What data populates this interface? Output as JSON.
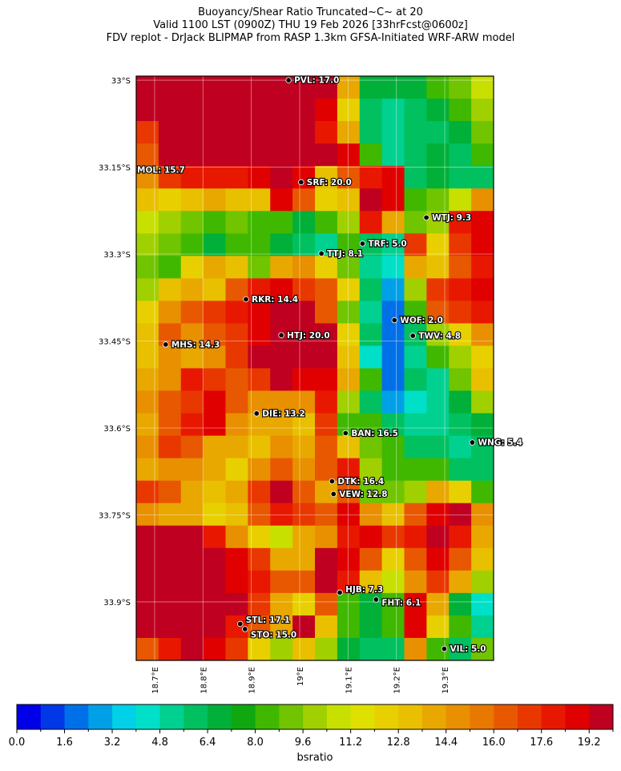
{
  "title": {
    "line1": "Buoyancy/Shear Ratio Truncated~C~    at 20",
    "line2": "Valid 1100 LST (0900Z) THU 19 Feb 2026 [33hrFcst@0600z]",
    "line3": "FDV replot - DrJack BLIPMAP from RASP 1.3km GFSA-Initiated WRF-ARW model"
  },
  "chart_data": {
    "type": "heatmap",
    "extent": {
      "lon": [
        18.662,
        19.401
      ],
      "lat_south": [
        32.993,
        34.001
      ]
    },
    "lat_ticks": [
      {
        "value": 33.0,
        "label": "33°S"
      },
      {
        "value": 33.15,
        "label": "33.15°S"
      },
      {
        "value": 33.3,
        "label": "33.3°S"
      },
      {
        "value": 33.45,
        "label": "33.45°S"
      },
      {
        "value": 33.6,
        "label": "33.6°S"
      },
      {
        "value": 33.75,
        "label": "33.75°S"
      },
      {
        "value": 33.9,
        "label": "33.9°S"
      }
    ],
    "lon_ticks": [
      {
        "value": 18.7,
        "label": "18.7°E"
      },
      {
        "value": 18.8,
        "label": "18.8°E"
      },
      {
        "value": 18.9,
        "label": "18.9°E"
      },
      {
        "value": 19.0,
        "label": "19°E"
      },
      {
        "value": 19.1,
        "label": "19.1°E"
      },
      {
        "value": 19.2,
        "label": "19.2°E"
      },
      {
        "value": 19.3,
        "label": "19.3°E"
      }
    ],
    "grid": true,
    "grid_values": [
      [
        20,
        20,
        20,
        20,
        20,
        20,
        20,
        20,
        20,
        14,
        7,
        7,
        7,
        8,
        9,
        11
      ],
      [
        20,
        20,
        20,
        20,
        20,
        20,
        20,
        20,
        19,
        12,
        6,
        5,
        6,
        7,
        8,
        10
      ],
      [
        17,
        20,
        20,
        20,
        20,
        20,
        20,
        20,
        18,
        14,
        6,
        5,
        6,
        6,
        7,
        9
      ],
      [
        16,
        20,
        20,
        20,
        20,
        20,
        20,
        20,
        20,
        19,
        8,
        5,
        6,
        7,
        6,
        8
      ],
      [
        15,
        17,
        18,
        18,
        18,
        19,
        20,
        19,
        13,
        16,
        18,
        19,
        6,
        7,
        6,
        6
      ],
      [
        13,
        12,
        13,
        14,
        13,
        13,
        19,
        16,
        12,
        13,
        20,
        19,
        8,
        9,
        11,
        15
      ],
      [
        11,
        10,
        9,
        8,
        9,
        8,
        8,
        7,
        8,
        10,
        18,
        14,
        9,
        10,
        18,
        19
      ],
      [
        10,
        9,
        8,
        7,
        8,
        8,
        7,
        6,
        5,
        8,
        6,
        5,
        17,
        12,
        17,
        19
      ],
      [
        9,
        8,
        12,
        14,
        13,
        9,
        14,
        15,
        12,
        9,
        5,
        4,
        14,
        13,
        16,
        18
      ],
      [
        10,
        13,
        14,
        13,
        16,
        18,
        19,
        17,
        16,
        12,
        6,
        3,
        10,
        17,
        18,
        19
      ],
      [
        12,
        15,
        16,
        17,
        18,
        19,
        20,
        20,
        16,
        9,
        5,
        2,
        8,
        16,
        17,
        18
      ],
      [
        13,
        16,
        15,
        16,
        17,
        19,
        20,
        20,
        20,
        12,
        6,
        2,
        6,
        10,
        12,
        15
      ],
      [
        13,
        15,
        14,
        15,
        17,
        20,
        20,
        20,
        20,
        13,
        4,
        2,
        5,
        8,
        10,
        12
      ],
      [
        14,
        15,
        18,
        17,
        16,
        17,
        20,
        19,
        19,
        14,
        8,
        2,
        6,
        5,
        9,
        13
      ],
      [
        15,
        16,
        17,
        19,
        16,
        15,
        15,
        15,
        18,
        10,
        6,
        3,
        4,
        5,
        7,
        10
      ],
      [
        14,
        16,
        18,
        19,
        15,
        14,
        14,
        13,
        17,
        8,
        8,
        6,
        5,
        5,
        6,
        7
      ],
      [
        15,
        17,
        16,
        14,
        14,
        13,
        15,
        14,
        16,
        13,
        9,
        8,
        6,
        6,
        5,
        6
      ],
      [
        14,
        15,
        15,
        14,
        12,
        15,
        16,
        15,
        16,
        18,
        10,
        8,
        8,
        8,
        6,
        6
      ],
      [
        17,
        16,
        14,
        13,
        14,
        17,
        20,
        16,
        14,
        16,
        9,
        9,
        10,
        14,
        12,
        8
      ],
      [
        15,
        14,
        14,
        12,
        13,
        16,
        18,
        17,
        16,
        19,
        15,
        13,
        16,
        19,
        20,
        15
      ],
      [
        20,
        20,
        20,
        18,
        15,
        12,
        11,
        14,
        15,
        18,
        19,
        17,
        18,
        20,
        18,
        14
      ],
      [
        20,
        20,
        20,
        20,
        19,
        17,
        14,
        14,
        20,
        19,
        16,
        12,
        16,
        19,
        16,
        13
      ],
      [
        20,
        20,
        20,
        20,
        19,
        18,
        16,
        16,
        20,
        18,
        13,
        11,
        15,
        17,
        14,
        10
      ],
      [
        20,
        20,
        20,
        20,
        20,
        17,
        14,
        12,
        16,
        8,
        7,
        8,
        19,
        14,
        7,
        4
      ],
      [
        20,
        20,
        20,
        20,
        18,
        16,
        14,
        20,
        13,
        8,
        7,
        8,
        19,
        12,
        8,
        5
      ],
      [
        16,
        18,
        20,
        19,
        17,
        12,
        10,
        13,
        10,
        7,
        6,
        6,
        15,
        8,
        6,
        9
      ]
    ],
    "stations": [
      {
        "label": "PVL: 17.0",
        "lon": 18.977,
        "lat": 33.0
      },
      {
        "label": "MOL: 15.7",
        "lon": 18.662,
        "lat": 33.155,
        "dot": false
      },
      {
        "label": "SRF: 20.0",
        "lon": 19.003,
        "lat": 33.176
      },
      {
        "label": "WTJ: 9.3",
        "lon": 19.262,
        "lat": 33.237
      },
      {
        "label": "TRF: 5.0",
        "lon": 19.13,
        "lat": 33.282
      },
      {
        "label": "TTJ: 8.1",
        "lon": 19.045,
        "lat": 33.299
      },
      {
        "label": "RKR: 14.4",
        "lon": 18.889,
        "lat": 33.378
      },
      {
        "label": "WOF: 2.0",
        "lon": 19.196,
        "lat": 33.414
      },
      {
        "label": "TWV: 4.8",
        "lon": 19.234,
        "lat": 33.441
      },
      {
        "label": "HTJ: 20.0",
        "lon": 18.962,
        "lat": 33.44
      },
      {
        "label": "MHS: 14.3",
        "lon": 18.723,
        "lat": 33.456
      },
      {
        "label": "DIE: 13.2",
        "lon": 18.911,
        "lat": 33.575
      },
      {
        "label": "BAN: 16.5",
        "lon": 19.095,
        "lat": 33.609
      },
      {
        "label": "WNG: 5.4",
        "lon": 19.357,
        "lat": 33.625
      },
      {
        "label": "DTK: 16.4",
        "lon": 19.067,
        "lat": 33.692
      },
      {
        "label": "VEW: 12.8",
        "lon": 19.07,
        "lat": 33.714
      },
      {
        "label": "HJB: 7.3",
        "lon": 19.083,
        "lat": 33.884
      },
      {
        "label": "FHT: 6.1",
        "lon": 19.158,
        "lat": 33.896
      },
      {
        "label": "STL: 17.1",
        "lon": 18.877,
        "lat": 33.938
      },
      {
        "label": "STO: 15.0",
        "lon": 18.887,
        "lat": 33.947
      },
      {
        "label": "VIL: 5.0",
        "lon": 19.299,
        "lat": 33.981
      }
    ],
    "colorbar": {
      "label": "bsratio",
      "range": [
        0,
        20
      ],
      "step": 0.8,
      "tick_labels": [
        "0.0",
        "1.6",
        "3.2",
        "4.8",
        "6.4",
        "8.0",
        "9.6",
        "11.2",
        "12.8",
        "14.4",
        "16.0",
        "17.6",
        "19.2"
      ],
      "colors": [
        "#0000e8",
        "#0038e8",
        "#0070e8",
        "#00a0e8",
        "#00d0e8",
        "#00e0c8",
        "#00d090",
        "#00c060",
        "#00b038",
        "#10a810",
        "#40b800",
        "#70c400",
        "#a0d000",
        "#c8e000",
        "#e0e000",
        "#e8d000",
        "#e8c000",
        "#e8a800",
        "#e89000",
        "#e87800",
        "#e85800",
        "#e83800",
        "#e81800",
        "#e00000",
        "#c00020"
      ]
    }
  }
}
